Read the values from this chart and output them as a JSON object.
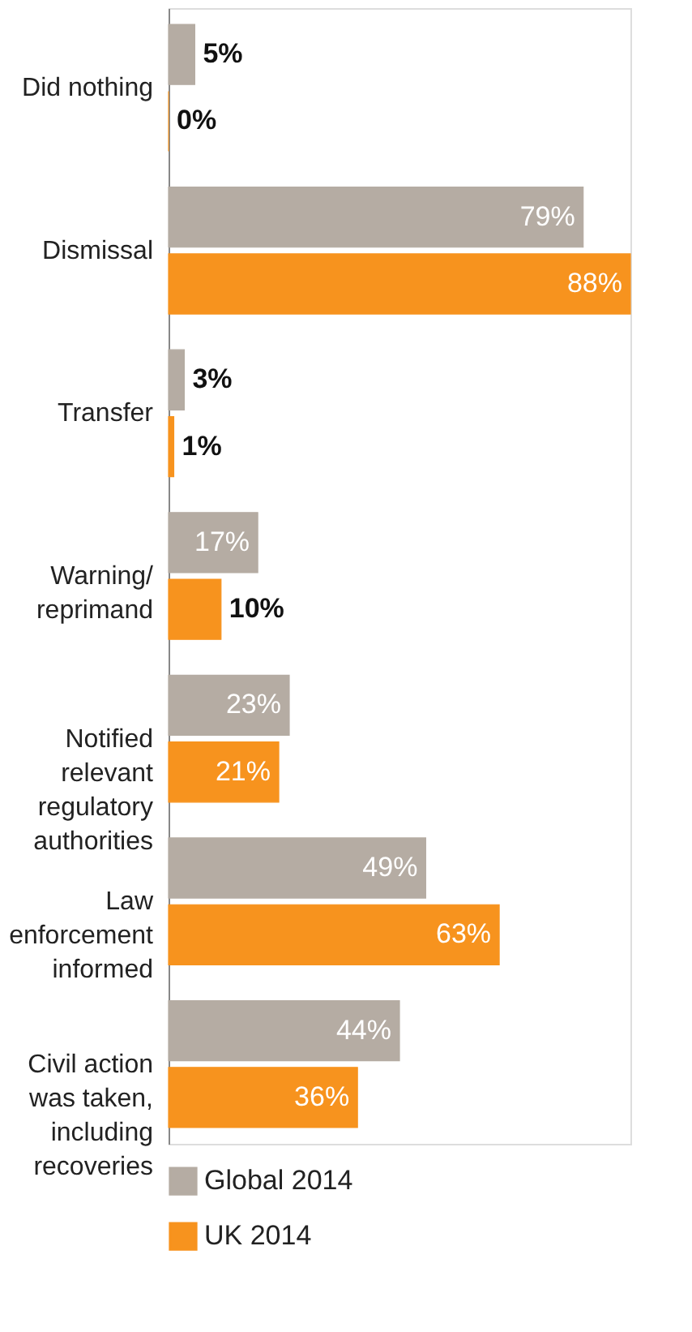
{
  "chart_data": {
    "type": "bar",
    "orientation": "horizontal",
    "categories": [
      "Did nothing",
      "Dismissal",
      "Transfer",
      "Warning/ reprimand",
      "Notified relevant regulatory authorities",
      "Law enforcement informed",
      "Civil action was taken, including recoveries"
    ],
    "series": [
      {
        "name": "Global 2014",
        "color": "#b5aca3",
        "values": [
          5,
          79,
          3,
          17,
          23,
          49,
          44
        ],
        "value_labels": [
          "5%",
          "79%",
          "3%",
          "17%",
          "23%",
          "49%",
          "44%"
        ]
      },
      {
        "name": "UK 2014",
        "color": "#f7931e",
        "values": [
          0,
          88,
          1,
          10,
          21,
          63,
          36
        ],
        "value_labels": [
          "0%",
          "88%",
          "1%",
          "10%",
          "21%",
          "63%",
          "36%"
        ]
      }
    ],
    "xlim": [
      0,
      88
    ],
    "tick_labels": "y",
    "grid": false,
    "legend": "bottom"
  }
}
